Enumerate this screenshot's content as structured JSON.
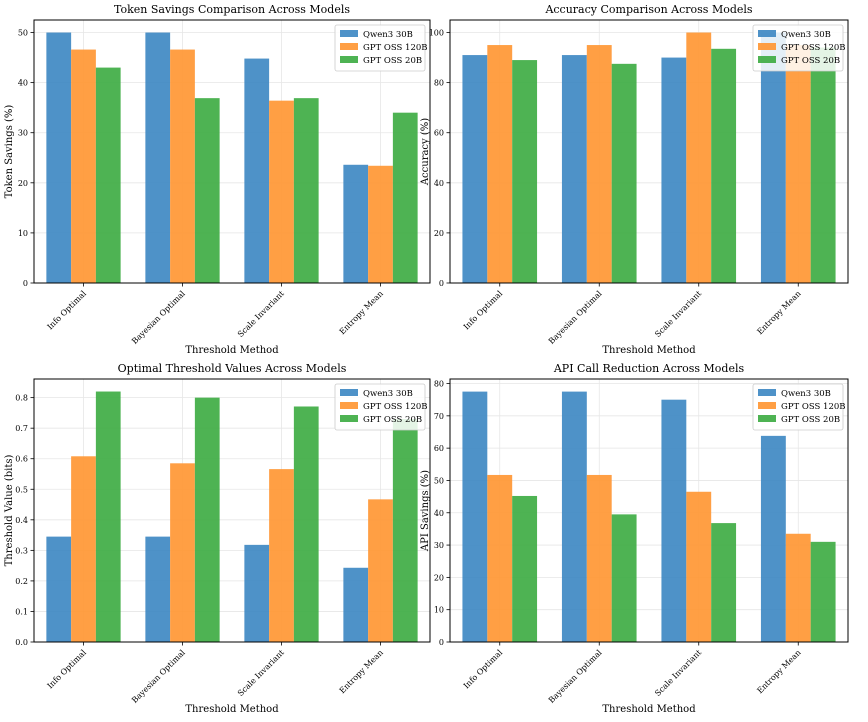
{
  "colors": {
    "series": [
      "#3f89c3",
      "#ff9734",
      "#3fad44"
    ]
  },
  "chart_data": [
    {
      "type": "bar",
      "title": "Token Savings Comparison Across Models",
      "xlabel": "Threshold Method",
      "ylabel": "Token Savings (%)",
      "categories": [
        "Info Optimal",
        "Bayesian Optimal",
        "Scale Invariant",
        "Entropy Mean"
      ],
      "series": [
        {
          "name": "Qwen3 30B",
          "values": [
            50.0,
            50.0,
            44.8,
            23.6
          ]
        },
        {
          "name": "GPT OSS 120B",
          "values": [
            46.6,
            46.6,
            36.4,
            23.4
          ]
        },
        {
          "name": "GPT OSS 20B",
          "values": [
            43.0,
            36.9,
            36.9,
            34.0
          ]
        }
      ],
      "ylim": [
        0,
        52.5
      ],
      "yticks": [
        0,
        10,
        20,
        30,
        40,
        50
      ],
      "ytick_labels": [
        "0",
        "10",
        "20",
        "30",
        "40",
        "50"
      ],
      "grid": true,
      "legend_position": "top-right"
    },
    {
      "type": "bar",
      "title": "Accuracy Comparison Across Models",
      "xlabel": "Threshold Method",
      "ylabel": "Accuracy (%)",
      "categories": [
        "Info Optimal",
        "Bayesian Optimal",
        "Scale Invariant",
        "Entropy Mean"
      ],
      "series": [
        {
          "name": "Qwen3 30B",
          "values": [
            91.0,
            91.0,
            90.0,
            100.0
          ]
        },
        {
          "name": "GPT OSS 120B",
          "values": [
            95.0,
            95.0,
            100.0,
            95.0
          ]
        },
        {
          "name": "GPT OSS 20B",
          "values": [
            89.0,
            87.5,
            93.5,
            94.0
          ]
        }
      ],
      "ylim": [
        0,
        105
      ],
      "yticks": [
        0,
        20,
        40,
        60,
        80,
        100
      ],
      "ytick_labels": [
        "0",
        "20",
        "40",
        "60",
        "80",
        "100"
      ],
      "grid": true,
      "legend_position": "top-right"
    },
    {
      "type": "bar",
      "title": "Optimal Threshold Values Across Models",
      "xlabel": "Threshold Method",
      "ylabel": "Threshold Value (bits)",
      "categories": [
        "Info Optimal",
        "Bayesian Optimal",
        "Scale Invariant",
        "Entropy Mean"
      ],
      "series": [
        {
          "name": "Qwen3 30B",
          "values": [
            0.345,
            0.345,
            0.318,
            0.243
          ]
        },
        {
          "name": "GPT OSS 120B",
          "values": [
            0.608,
            0.585,
            0.566,
            0.467
          ]
        },
        {
          "name": "GPT OSS 20B",
          "values": [
            0.82,
            0.8,
            0.771,
            0.73
          ]
        }
      ],
      "ylim": [
        0,
        0.861
      ],
      "yticks": [
        0,
        0.1,
        0.2,
        0.3,
        0.4,
        0.5,
        0.6,
        0.7,
        0.8
      ],
      "ytick_labels": [
        "0.0",
        "0.1",
        "0.2",
        "0.3",
        "0.4",
        "0.5",
        "0.6",
        "0.7",
        "0.8"
      ],
      "grid": true,
      "legend_position": "top-right"
    },
    {
      "type": "bar",
      "title": "API Call Reduction Across Models",
      "xlabel": "Threshold Method",
      "ylabel": "API Savings (%)",
      "categories": [
        "Info Optimal",
        "Bayesian Optimal",
        "Scale Invariant",
        "Entropy Mean"
      ],
      "series": [
        {
          "name": "Qwen3 30B",
          "values": [
            77.5,
            77.5,
            75.0,
            63.8
          ]
        },
        {
          "name": "GPT OSS 120B",
          "values": [
            51.7,
            51.7,
            46.5,
            33.5
          ]
        },
        {
          "name": "GPT OSS 20B",
          "values": [
            45.2,
            39.5,
            36.8,
            31.0
          ]
        }
      ],
      "ylim": [
        0,
        81.4
      ],
      "yticks": [
        0,
        10,
        20,
        30,
        40,
        50,
        60,
        70,
        80
      ],
      "ytick_labels": [
        "0",
        "10",
        "20",
        "30",
        "40",
        "50",
        "60",
        "70",
        "80"
      ],
      "grid": true,
      "legend_position": "top-right"
    }
  ]
}
